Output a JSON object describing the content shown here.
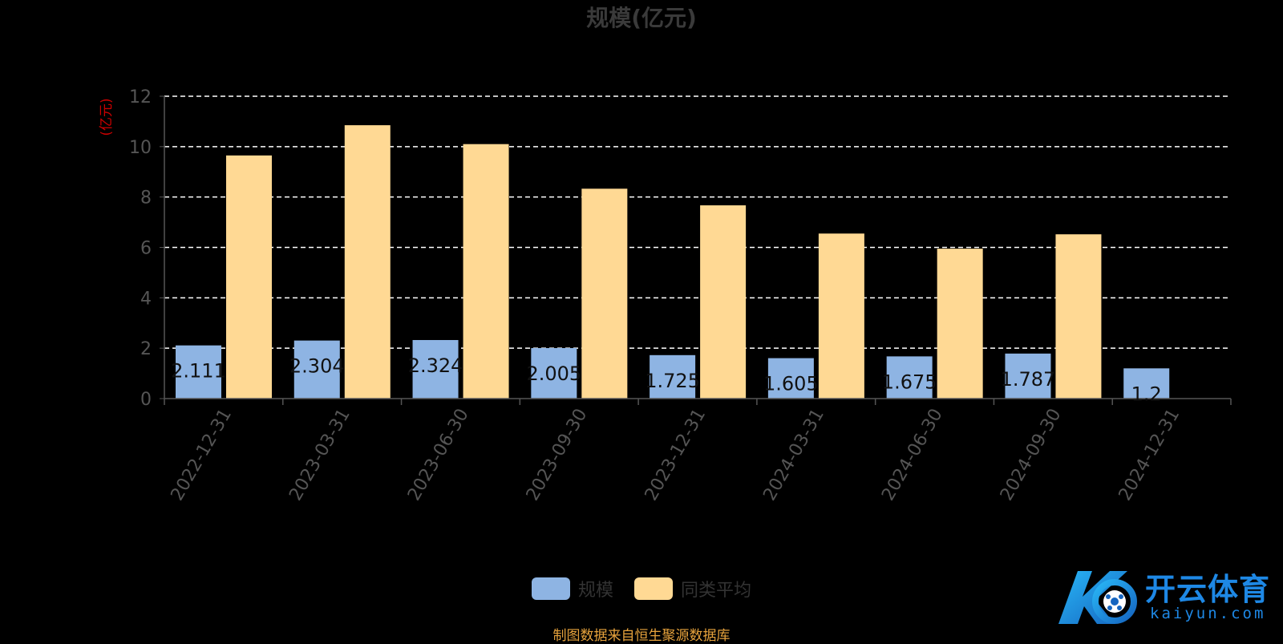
{
  "chart_data": {
    "type": "bar",
    "title": "规模(亿元)",
    "ylabel": "(亿元)",
    "xlabel": "",
    "ylim": [
      0,
      12
    ],
    "yticks": [
      0,
      2,
      4,
      6,
      8,
      10,
      12
    ],
    "grid": true,
    "legend_position": "bottom-center",
    "categories": [
      "2022-12-31",
      "2023-03-31",
      "2023-06-30",
      "2023-09-30",
      "2023-12-31",
      "2024-03-31",
      "2024-06-30",
      "2024-09-30",
      "2024-12-31"
    ],
    "series": [
      {
        "name": "规模",
        "color": "#8eb4e3",
        "values": [
          2.111,
          2.304,
          2.324,
          2.005,
          1.725,
          1.605,
          1.675,
          1.787,
          1.2
        ],
        "labels": [
          "2.111",
          "2.304",
          "2.324",
          "2.005",
          "1.725",
          "1.605",
          "1.675",
          "1.787",
          "1.2"
        ]
      },
      {
        "name": "同类平均",
        "color": "#ffd994",
        "values": [
          9.65,
          10.85,
          10.1,
          8.33,
          7.67,
          6.55,
          5.95,
          6.52,
          null
        ]
      }
    ]
  },
  "source_note": "制图数据来自恒生聚源数据库",
  "watermark": {
    "cn": "开云体育",
    "en": "kaiyun.com"
  },
  "colors": {
    "background": "#000000",
    "title": "#3a3a3a",
    "axis_label": "#cc0000",
    "tick": "#555555",
    "grid": "#ffffff",
    "note": "#e6a23c"
  }
}
